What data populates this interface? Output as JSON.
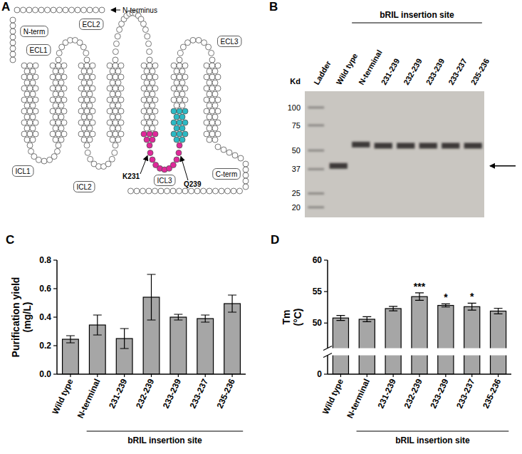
{
  "diagram": {
    "panel": "A",
    "n_terminus": "N-terminus",
    "regions": [
      "N-term",
      "ECL1",
      "ECL2",
      "ECL3",
      "ICL1",
      "ICL2",
      "ICL3",
      "C-term"
    ],
    "highlight": {
      "start": "K231",
      "end": "Q239"
    }
  },
  "gel": {
    "panel": "B",
    "ylabel": "Kd",
    "title": "bRIL insertion site",
    "log": "y",
    "ylim": [
      17,
      130
    ],
    "yticks": [
      100,
      75,
      50,
      37,
      25,
      20
    ],
    "lanes": [
      {
        "label": "Ladder"
      },
      {
        "label": "Wild type",
        "band_kd": 39
      },
      {
        "label": "N-terminal",
        "band_kd": 55
      },
      {
        "label": "231-239",
        "band_kd": 54
      },
      {
        "label": "232-239",
        "band_kd": 54
      },
      {
        "label": "233-239",
        "band_kd": 54
      },
      {
        "label": "233-237",
        "band_kd": 54
      },
      {
        "label": "235-236",
        "band_kd": 54
      }
    ],
    "arrow_kd": 39
  },
  "chart_data": [
    {
      "panel": "C",
      "type": "bar",
      "color": "#a6a6a6",
      "categories": [
        "Wild type",
        "N-terminal",
        "231-239",
        "232-239",
        "233-239",
        "233-237",
        "235-236"
      ],
      "values": [
        0.245,
        0.345,
        0.25,
        0.54,
        0.4,
        0.39,
        0.495
      ],
      "errors": [
        0.025,
        0.07,
        0.07,
        0.16,
        0.02,
        0.025,
        0.06
      ],
      "ylabel": "Purification yield (mg/L)",
      "xlabel": "bRIL insertion site",
      "ylim": [
        0,
        0.8
      ],
      "yticks": [
        {
          "value": 0,
          "label": "0.0"
        },
        0.2,
        0.4,
        0.6,
        0.8
      ]
    },
    {
      "panel": "D",
      "type": "bar",
      "color": "#a6a6a6",
      "categories": [
        "Wild type",
        "N-terminal",
        "231-239",
        "232-239",
        "233-239",
        "233-237",
        "235-236"
      ],
      "values": [
        50.8,
        50.6,
        52.3,
        54.2,
        52.8,
        52.6,
        51.9
      ],
      "errors": [
        0.4,
        0.4,
        0.35,
        0.6,
        0.25,
        0.55,
        0.45
      ],
      "significance": [
        null,
        null,
        null,
        "***",
        "*",
        "*",
        null
      ],
      "ylabel": "Tm (°C)",
      "xlabel": "bRIL insertion site",
      "ylim": [
        0,
        60
      ],
      "ybreak": [
        3,
        46
      ],
      "yticks": [
        0,
        50,
        55,
        60
      ]
    }
  ]
}
